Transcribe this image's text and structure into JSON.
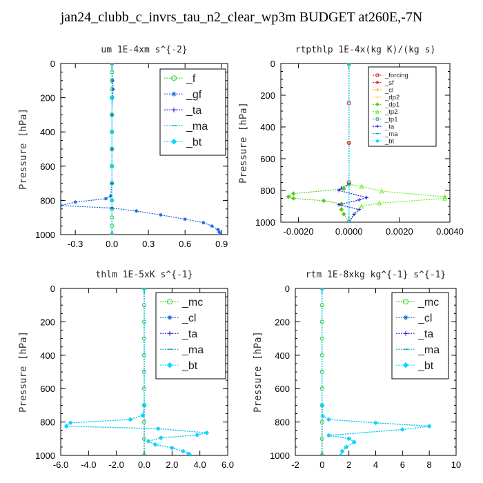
{
  "page_title": "jan24_clubb_c_invrs_tau_n2_clear_wp3m  BUDGET at260E,-7N",
  "colors": {
    "green": "#33cc33",
    "blue": "#1560dd",
    "darkblue": "#1515d8",
    "cyan": "#00d8ff",
    "red": "#dd1111",
    "orange": "#ffaa00",
    "lime": "#66ee22"
  },
  "chart_data": [
    {
      "type": "line",
      "title": "um    1E-4xm  s^{-2}",
      "ylabel": "Pressure  [hPa]",
      "xlim": [
        -0.42,
        0.95
      ],
      "ylim": [
        1000,
        0
      ],
      "xticks": [
        -0.3,
        0.0,
        0.3,
        0.6,
        0.9
      ],
      "xtick_labels": [
        "-0.3",
        "0.0",
        "0.3",
        "0.6",
        "0.9"
      ],
      "yticks": [
        0,
        200,
        400,
        600,
        800,
        1000
      ],
      "ytick_labels": [
        "0",
        "200",
        "400",
        "600",
        "800",
        "1000"
      ],
      "legend_position": "top-right",
      "series": [
        {
          "name": "_f",
          "color": "#33cc33",
          "marker": "circle",
          "points": [
            [
              0,
              0
            ],
            [
              0,
              50
            ],
            [
              0,
              100
            ],
            [
              0,
              150
            ],
            [
              0,
              200
            ],
            [
              0,
              300
            ],
            [
              0,
              400
            ],
            [
              0,
              500
            ],
            [
              0,
              600
            ],
            [
              0,
              700
            ],
            [
              0,
              800
            ],
            [
              0,
              850
            ],
            [
              0,
              900
            ],
            [
              0,
              950
            ],
            [
              0,
              1000
            ]
          ]
        },
        {
          "name": "_gf",
          "color": "#1560dd",
          "marker": "star",
          "points": [
            [
              0,
              0
            ],
            [
              0.005,
              100
            ],
            [
              0.01,
              150
            ],
            [
              0.005,
              200
            ],
            [
              0,
              300
            ],
            [
              0,
              500
            ],
            [
              0,
              700
            ],
            [
              -0.01,
              775
            ],
            [
              -0.05,
              790
            ],
            [
              -0.3,
              810
            ],
            [
              -0.42,
              830
            ],
            [
              0.0,
              845
            ],
            [
              0.2,
              862
            ],
            [
              0.4,
              885
            ],
            [
              0.6,
              910
            ],
            [
              0.75,
              930
            ],
            [
              0.82,
              950
            ],
            [
              0.87,
              970
            ],
            [
              0.88,
              985
            ],
            [
              0.89,
              1000
            ]
          ]
        },
        {
          "name": "_ta",
          "color": "#1515d8",
          "marker": "plus",
          "points": [
            [
              0,
              0
            ],
            [
              0,
              500
            ],
            [
              0,
              1000
            ]
          ]
        },
        {
          "name": "_ma",
          "color": "#00aacc",
          "marker": "dash",
          "points": [
            [
              0,
              0
            ],
            [
              0,
              500
            ],
            [
              0,
              1000
            ]
          ]
        },
        {
          "name": "_bt",
          "color": "#00d8ff",
          "marker": "diamond",
          "points": [
            [
              0,
              0
            ],
            [
              0,
              200
            ],
            [
              0,
              400
            ],
            [
              0,
              600
            ],
            [
              0,
              800
            ],
            [
              0,
              1000
            ]
          ]
        }
      ]
    },
    {
      "type": "line",
      "title": "rtpthlp   1E-4x(kg K)/(kg s)",
      "ylabel": "Pressure  [hPa]",
      "xlim": [
        -0.0027,
        0.004
      ],
      "ylim": [
        1000,
        0
      ],
      "xticks": [
        -0.002,
        0.0,
        0.002,
        0.004
      ],
      "xtick_labels": [
        "-0.0020",
        "0.0000",
        "0.0020",
        "0.0040"
      ],
      "yticks": [
        0,
        200,
        400,
        600,
        800,
        1000
      ],
      "ytick_labels": [
        "0",
        "200",
        "400",
        "600",
        "800",
        "1000"
      ],
      "legend_position": "top-right",
      "series": [
        {
          "name": "_forcing",
          "color": "#dd1111",
          "marker": "circle",
          "points": [
            [
              0,
              0
            ],
            [
              0,
              250
            ],
            [
              0,
              500
            ],
            [
              0,
              750
            ],
            [
              0,
              1000
            ]
          ]
        },
        {
          "name": "_sf",
          "color": "#ee2222",
          "marker": "star",
          "points": [
            [
              0,
              0
            ],
            [
              0,
              500
            ],
            [
              0,
              1000
            ]
          ]
        },
        {
          "name": "_cl",
          "color": "#ffaa00",
          "marker": "plus",
          "points": [
            [
              0,
              0
            ],
            [
              0,
              500
            ],
            [
              0,
              1000
            ]
          ]
        },
        {
          "name": "_dp2",
          "color": "#ffcc33",
          "marker": "dash",
          "points": [
            [
              0,
              0
            ],
            [
              0,
              1000
            ]
          ]
        },
        {
          "name": "_dp1",
          "color": "#55cc22",
          "marker": "diamond",
          "points": [
            [
              0,
              0
            ],
            [
              0,
              760
            ],
            [
              -0.0002,
              790
            ],
            [
              -0.0022,
              820
            ],
            [
              -0.0024,
              840
            ],
            [
              -0.0022,
              850
            ],
            [
              -0.001,
              865
            ],
            [
              -0.0003,
              885
            ],
            [
              -0.0003,
              920
            ],
            [
              -0.0002,
              950
            ],
            [
              0,
              1000
            ]
          ]
        },
        {
          "name": "_tp2",
          "color": "#66ee22",
          "marker": "triangle",
          "points": [
            [
              0,
              0
            ],
            [
              0,
              760
            ],
            [
              0.0005,
              775
            ],
            [
              0.0013,
              805
            ],
            [
              0.0038,
              840
            ],
            [
              0.0038,
              850
            ],
            [
              0.0012,
              880
            ],
            [
              0.0005,
              900
            ],
            [
              0,
              1000
            ]
          ]
        },
        {
          "name": "_tp1",
          "color": "#33aa88",
          "marker": "square",
          "points": [
            [
              0,
              0
            ],
            [
              0,
              1000
            ]
          ]
        },
        {
          "name": "_ta",
          "color": "#1515d8",
          "marker": "plus",
          "points": [
            [
              0,
              0
            ],
            [
              0,
              760
            ],
            [
              -0.0003,
              785
            ],
            [
              -0.0004,
              800
            ],
            [
              0.0007,
              845
            ],
            [
              0.0004,
              860
            ],
            [
              -0.0004,
              890
            ],
            [
              0.0004,
              920
            ],
            [
              0.0002,
              950
            ],
            [
              0,
              1000
            ]
          ]
        },
        {
          "name": "_ma",
          "color": "#00aacc",
          "marker": "dash",
          "points": [
            [
              0,
              0
            ],
            [
              0,
              1000
            ]
          ]
        },
        {
          "name": "_bt",
          "color": "#00d8ff",
          "marker": "diamond",
          "points": [
            [
              0,
              0
            ],
            [
              0,
              1000
            ]
          ]
        }
      ]
    },
    {
      "type": "line",
      "title": "thlm    1E-5xK  s^{-1}",
      "ylabel": "Pressure  [hPa]",
      "xlim": [
        -6.0,
        6.0
      ],
      "ylim": [
        1000,
        0
      ],
      "xticks": [
        -6.0,
        -4.0,
        -2.0,
        0.0,
        2.0,
        4.0,
        6.0
      ],
      "xtick_labels": [
        "-6.0",
        "-4.0",
        "-2.0",
        "0.0",
        "2.0",
        "4.0",
        "6.0"
      ],
      "yticks": [
        0,
        200,
        400,
        600,
        800,
        1000
      ],
      "ytick_labels": [
        "0",
        "200",
        "400",
        "600",
        "800",
        "1000"
      ],
      "legend_position": "top-right",
      "series": [
        {
          "name": "_mc",
          "color": "#33cc33",
          "marker": "circle",
          "points": [
            [
              0,
              0
            ],
            [
              0,
              100
            ],
            [
              0,
              200
            ],
            [
              0,
              300
            ],
            [
              0,
              400
            ],
            [
              0,
              500
            ],
            [
              0,
              600
            ],
            [
              0,
              700
            ],
            [
              0,
              800
            ],
            [
              0,
              900
            ],
            [
              0,
              1000
            ]
          ]
        },
        {
          "name": "_cl",
          "color": "#1560dd",
          "marker": "star",
          "points": [
            [
              0,
              0
            ],
            [
              0,
              700
            ],
            [
              -0.1,
              760
            ],
            [
              -1.0,
              785
            ],
            [
              -5.3,
              805
            ],
            [
              -5.6,
              825
            ],
            [
              1.0,
              840
            ],
            [
              4.5,
              865
            ],
            [
              3.8,
              878
            ],
            [
              1.2,
              895
            ],
            [
              0.3,
              915
            ],
            [
              0.8,
              935
            ],
            [
              2.0,
              955
            ],
            [
              2.8,
              975
            ],
            [
              3.2,
              990
            ],
            [
              3.3,
              1000
            ]
          ]
        },
        {
          "name": "_ta",
          "color": "#1515d8",
          "marker": "plus",
          "points": [
            [
              0,
              0
            ],
            [
              0,
              1000
            ]
          ]
        },
        {
          "name": "_ma",
          "color": "#00aacc",
          "marker": "dash",
          "points": [
            [
              0,
              0
            ],
            [
              0,
              1000
            ]
          ]
        },
        {
          "name": "_bt",
          "color": "#00d8ff",
          "marker": "diamond",
          "points": [
            [
              0,
              0
            ],
            [
              0,
              700
            ],
            [
              -0.1,
              760
            ],
            [
              -1.0,
              785
            ],
            [
              -5.3,
              805
            ],
            [
              -5.6,
              825
            ],
            [
              1.0,
              840
            ],
            [
              4.5,
              865
            ],
            [
              3.8,
              878
            ],
            [
              1.2,
              895
            ],
            [
              0.3,
              915
            ],
            [
              0.8,
              935
            ],
            [
              2.0,
              955
            ],
            [
              2.8,
              975
            ],
            [
              3.2,
              990
            ],
            [
              3.3,
              1000
            ]
          ]
        }
      ]
    },
    {
      "type": "line",
      "title": "rtm    1E-8xkg  kg^{-1}  s^{-1}",
      "ylabel": "Pressure  [hPa]",
      "xlim": [
        -2,
        10
      ],
      "ylim": [
        1000,
        0
      ],
      "xticks": [
        -2,
        0,
        2,
        4,
        6,
        8,
        10
      ],
      "xtick_labels": [
        "-2",
        "0",
        "2",
        "4",
        "6",
        "8",
        "10"
      ],
      "yticks": [
        0,
        200,
        400,
        600,
        800,
        1000
      ],
      "ytick_labels": [
        "0",
        "200",
        "400",
        "600",
        "800",
        "1000"
      ],
      "legend_position": "top-right",
      "series": [
        {
          "name": "_mc",
          "color": "#33cc33",
          "marker": "circle",
          "points": [
            [
              0,
              0
            ],
            [
              0,
              100
            ],
            [
              0,
              200
            ],
            [
              0,
              300
            ],
            [
              0,
              400
            ],
            [
              0,
              500
            ],
            [
              0,
              600
            ],
            [
              0,
              700
            ],
            [
              0,
              800
            ],
            [
              0,
              900
            ],
            [
              0,
              1000
            ]
          ]
        },
        {
          "name": "_cl",
          "color": "#1560dd",
          "marker": "star",
          "points": [
            [
              0,
              0
            ],
            [
              0,
              700
            ],
            [
              0.05,
              765
            ],
            [
              0.5,
              785
            ],
            [
              4.0,
              805
            ],
            [
              8.0,
              825
            ],
            [
              6.0,
              845
            ],
            [
              0.5,
              880
            ],
            [
              2.0,
              900
            ],
            [
              2.4,
              920
            ],
            [
              1.8,
              950
            ],
            [
              1.5,
              975
            ],
            [
              1.4,
              1000
            ]
          ]
        },
        {
          "name": "_ta",
          "color": "#1515d8",
          "marker": "plus",
          "points": [
            [
              0,
              0
            ],
            [
              0,
              1000
            ]
          ]
        },
        {
          "name": "_ma",
          "color": "#00aacc",
          "marker": "dash",
          "points": [
            [
              0,
              0
            ],
            [
              0,
              1000
            ]
          ]
        },
        {
          "name": "_bt",
          "color": "#00d8ff",
          "marker": "diamond",
          "points": [
            [
              0,
              0
            ],
            [
              0,
              700
            ],
            [
              0.05,
              765
            ],
            [
              0.5,
              785
            ],
            [
              4.0,
              805
            ],
            [
              8.0,
              825
            ],
            [
              6.0,
              845
            ],
            [
              0.5,
              880
            ],
            [
              2.0,
              900
            ],
            [
              2.4,
              920
            ],
            [
              1.8,
              950
            ],
            [
              1.5,
              975
            ],
            [
              1.4,
              1000
            ]
          ]
        }
      ]
    }
  ]
}
